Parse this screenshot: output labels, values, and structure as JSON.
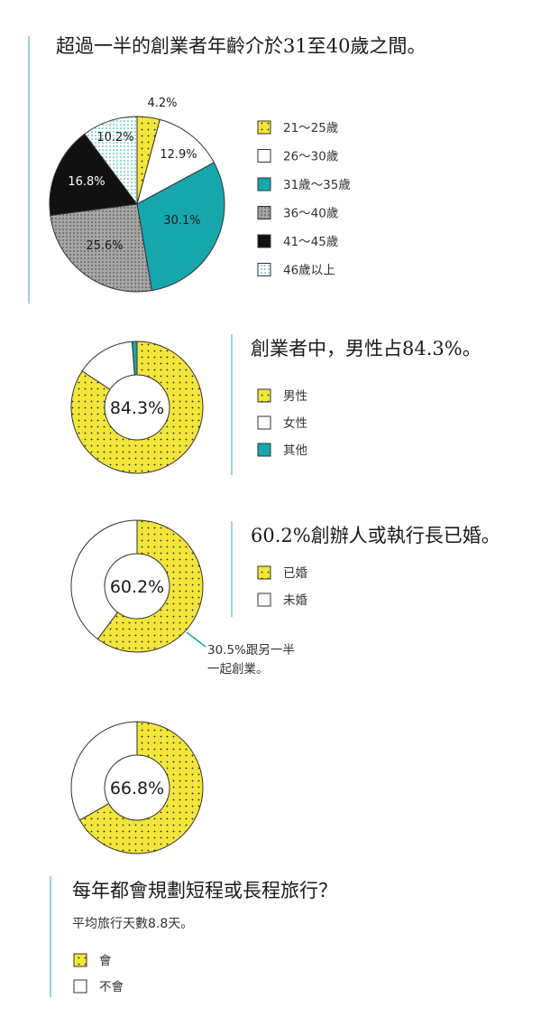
{
  "colors": {
    "yellow": "#f3e63a",
    "teal": "#16a7ad",
    "gray": "#9a9a9a",
    "black": "#111111",
    "white": "#ffffff",
    "accent_line": "#7fc6cf"
  },
  "chart_data": [
    {
      "type": "pie",
      "title": "超過一半的創業者年齡介於31至40歲之間。",
      "series": [
        {
          "name": "21～25歲",
          "value": 4.2,
          "label": "4.2%",
          "fill": "yellow-dots"
        },
        {
          "name": "26～30歲",
          "value": 12.9,
          "label": "12.9%",
          "fill": "white"
        },
        {
          "name": "31歲～35歲",
          "value": 30.1,
          "label": "30.1%",
          "fill": "teal"
        },
        {
          "name": "36～40歲",
          "value": 25.6,
          "label": "25.6%",
          "fill": "gray-dots"
        },
        {
          "name": "41～45歲",
          "value": 16.8,
          "label": "16.8%",
          "fill": "black"
        },
        {
          "name": "46歲以上",
          "value": 10.2,
          "label": "10.2%",
          "fill": "teal-grid"
        }
      ]
    },
    {
      "type": "pie",
      "title": "創業者中，男性占84.3%。",
      "center_label": "84.3%",
      "series": [
        {
          "name": "男性",
          "value": 84.3,
          "fill": "yellow-dots"
        },
        {
          "name": "女性",
          "value": 14.5,
          "fill": "white"
        },
        {
          "name": "其他",
          "value": 1.2,
          "fill": "teal"
        }
      ]
    },
    {
      "type": "pie",
      "title": "60.2%創辦人或執行長已婚。",
      "center_label": "60.2%",
      "annotation": [
        "30.5%跟另一半",
        "一起創業。"
      ],
      "series": [
        {
          "name": "已婚",
          "value": 60.2,
          "fill": "yellow-dots"
        },
        {
          "name": "未婚",
          "value": 39.8,
          "fill": "white"
        }
      ]
    },
    {
      "type": "pie",
      "title": "每年都會規劃短程或長程旅行？",
      "subtitle": "平均旅行天數8.8天。",
      "center_label": "66.8%",
      "series": [
        {
          "name": "會",
          "value": 66.8,
          "fill": "yellow-dots"
        },
        {
          "name": "不會",
          "value": 33.2,
          "fill": "white"
        }
      ]
    }
  ]
}
